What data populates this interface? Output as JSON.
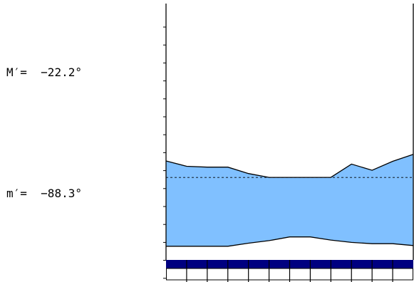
{
  "readouts": {
    "max_label": "M′=",
    "max_value": "−22.2°",
    "min_label": "m′=",
    "min_value": "−88.3°"
  },
  "colors": {
    "band_fill": "#80c0ff",
    "bottom_strip": "#000080",
    "line": "#000000",
    "background": "#ffffff"
  },
  "chart_data": {
    "type": "area",
    "title": "",
    "xlabel": "",
    "ylabel": "",
    "x": [
      1,
      2,
      3,
      4,
      5,
      6,
      7,
      8,
      9,
      10,
      11,
      12,
      13
    ],
    "series": [
      {
        "values": [
          -70.8,
          -73.7,
          -74.2,
          -74.2,
          -77.7,
          -79.8,
          -79.8,
          -79.8,
          -79.8,
          -72.5,
          -75.9,
          -71.0,
          -67.2
        ]
      },
      {
        "values": [
          -117.4,
          -117.4,
          -117.4,
          -117.4,
          -115.7,
          -114.3,
          -112.3,
          -112.3,
          -114.0,
          -115.3,
          -116.0,
          -116.0,
          -117.0
        ]
      }
    ],
    "reference_line": -79.8,
    "reference_line_style": "dashed",
    "ticks_left": 15,
    "columns_bottom": 12,
    "grid": false,
    "legend": "none"
  }
}
